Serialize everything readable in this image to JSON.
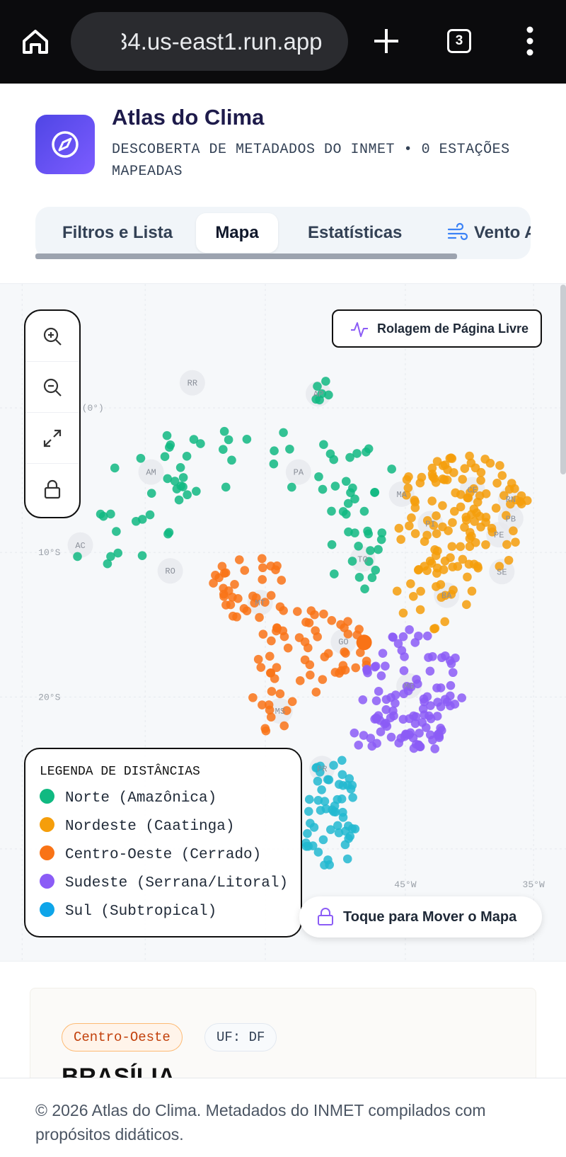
{
  "browser": {
    "url": "34.us-east1.run.app",
    "tab_count": "3"
  },
  "header": {
    "title": "Atlas do Clima",
    "subtitle": "DESCOBERTA DE METADADOS DO INMET • 0 ESTAÇÕES MAPEADAS"
  },
  "tabs": [
    "Filtros e Lista",
    "Mapa",
    "Estatísticas",
    "Vento A"
  ],
  "map": {
    "state_labels": [
      "RR",
      "AP",
      "AM",
      "PA",
      "MA",
      "CE",
      "RN",
      "PB",
      "PE",
      "SE",
      "PI",
      "AC",
      "RO",
      "TO",
      "BA",
      "MT",
      "GO",
      "MG",
      "MS",
      "PR"
    ],
    "axis_labels": [
      "(0°)",
      "10°S",
      "20°S",
      "45°W",
      "35°W"
    ],
    "scroll_button": "Rolagem de Página Livre",
    "move_button": "Toque para Mover o Mapa",
    "legend": {
      "title": "LEGENDA DE DISTÂNCIAS",
      "items": [
        {
          "label": "Norte (Amazônica)",
          "color": "#10b981"
        },
        {
          "label": "Nordeste (Caatinga)",
          "color": "#f59e0b"
        },
        {
          "label": "Centro-Oeste (Cerrado)",
          "color": "#f97316"
        },
        {
          "label": "Sudeste (Serrana/Litoral)",
          "color": "#8b5cf6"
        },
        {
          "label": "Sul (Subtropical)",
          "color": "#0ea5e9"
        }
      ]
    }
  },
  "card": {
    "region": "Centro-Oeste",
    "uf": "UF: DF",
    "name": "BRASÍLIA"
  },
  "footer": "© 2026 Atlas do Clima. Metadados do INMET compilados com propósitos didáticos."
}
